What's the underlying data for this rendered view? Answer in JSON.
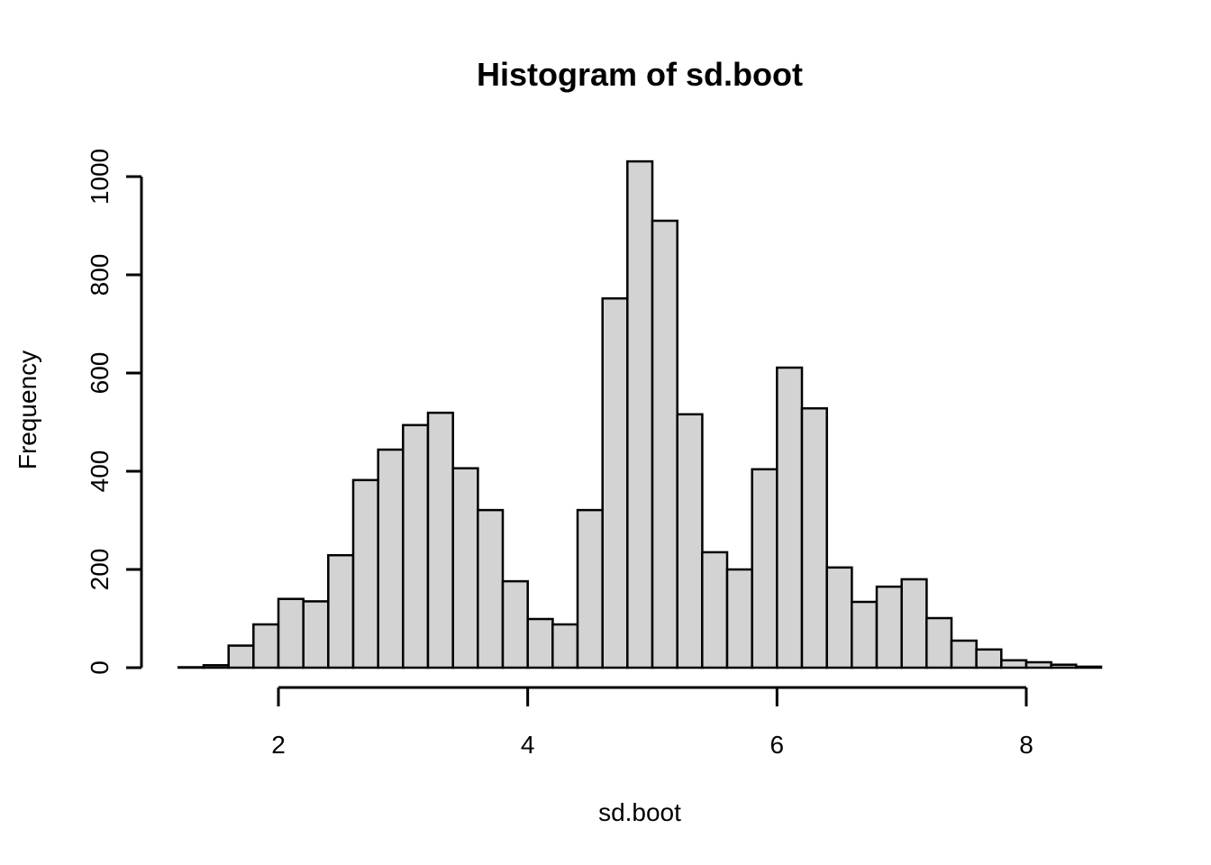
{
  "figure": {
    "title": "Histogram of sd.boot",
    "x_axis_label": "sd.boot",
    "y_axis_label": "Frequency"
  },
  "chart_data": {
    "type": "bar",
    "subtype": "histogram",
    "title": "Histogram of sd.boot",
    "xlabel": "sd.boot",
    "ylabel": "Frequency",
    "bin_start": 1.2,
    "bin_width": 0.2,
    "counts": [
      1,
      5,
      45,
      88,
      140,
      135,
      229,
      382,
      444,
      494,
      519,
      406,
      321,
      176,
      99,
      88,
      321,
      752,
      1031,
      910,
      516,
      235,
      200,
      404,
      611,
      528,
      204,
      134,
      165,
      180,
      101,
      55,
      37,
      15,
      11,
      6,
      2
    ],
    "x_ticks": [
      2,
      4,
      6,
      8
    ],
    "y_ticks": [
      0,
      200,
      400,
      600,
      800,
      1000
    ],
    "xlim": [
      1.2,
      8.6
    ],
    "ylim": [
      0,
      1031
    ],
    "grid": false,
    "legend": "none",
    "bar_fill": "#d3d3d3",
    "bar_stroke": "#000000",
    "axis_color": "#000000"
  }
}
